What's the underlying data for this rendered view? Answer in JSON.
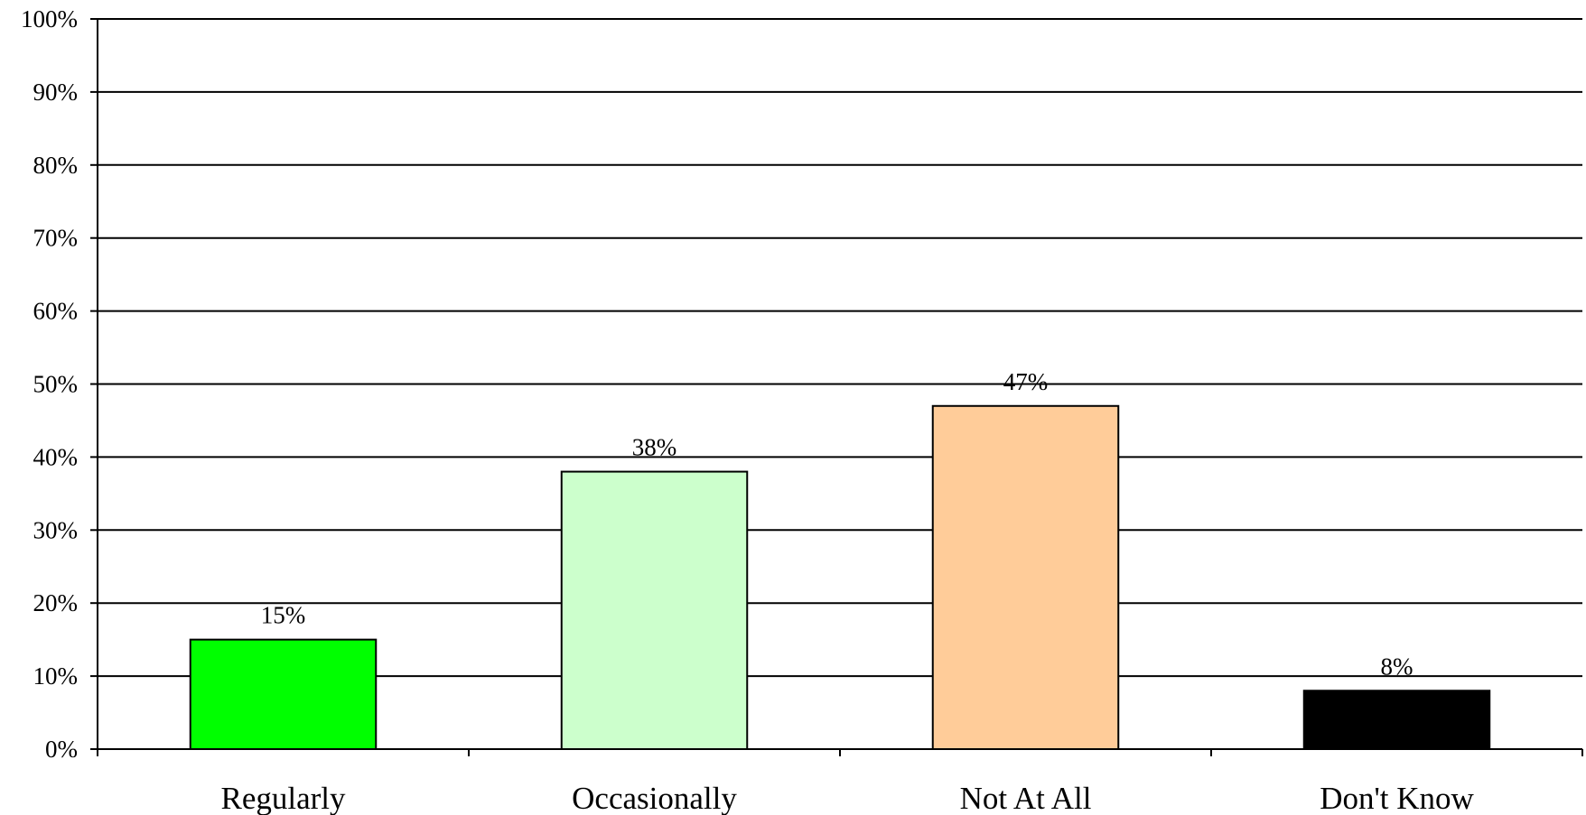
{
  "chart_data": {
    "type": "bar",
    "categories": [
      "Regularly",
      "Occasionally",
      "Not At All",
      "Don't Know"
    ],
    "values": [
      15,
      38,
      47,
      8
    ],
    "data_labels": [
      "15%",
      "38%",
      "47%",
      "8%"
    ],
    "colors": [
      "#00ff00",
      "#ccffcc",
      "#ffcc99",
      "#000000"
    ],
    "ylim": [
      0,
      100
    ],
    "yticks": [
      0,
      10,
      20,
      30,
      40,
      50,
      60,
      70,
      80,
      90,
      100
    ],
    "ytick_labels": [
      "0%",
      "10%",
      "20%",
      "30%",
      "40%",
      "50%",
      "60%",
      "70%",
      "80%",
      "90%",
      "100%"
    ],
    "title": "",
    "xlabel": "",
    "ylabel": "",
    "grid": true,
    "legend": "none"
  }
}
